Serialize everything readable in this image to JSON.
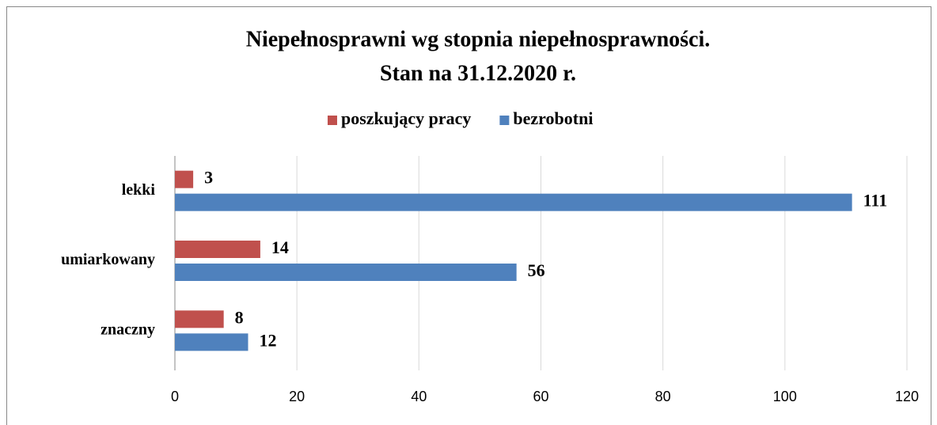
{
  "chart_data": {
    "type": "hbar",
    "title": "Niepełnosprawni wg stopnia niepełnosprawności.",
    "subtitle": "Stan na 31.12.2020 r.",
    "categories": [
      "lekki",
      "umiarkowany",
      "znaczny"
    ],
    "series": [
      {
        "name": "poszkujący pracy",
        "color": "#c0504d",
        "values": [
          3,
          14,
          8
        ]
      },
      {
        "name": "bezrobotni",
        "color": "#4f81bd",
        "values": [
          111,
          56,
          12
        ]
      }
    ],
    "xlim": [
      0,
      120
    ],
    "xticks": [
      0,
      20,
      40,
      60,
      80,
      100,
      120
    ],
    "grid": true,
    "legend": "top"
  }
}
